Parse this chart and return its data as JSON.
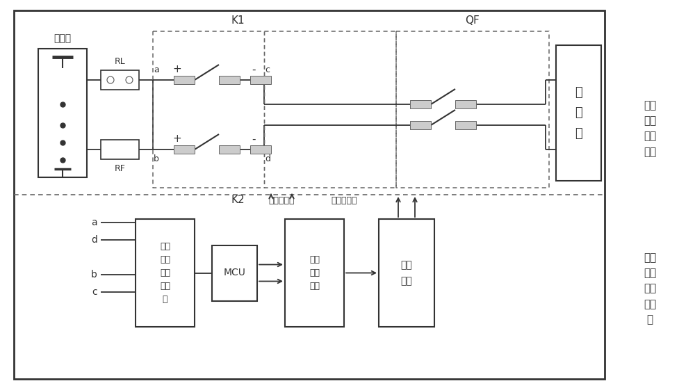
{
  "bg_color": "#ffffff",
  "fig_width": 10.0,
  "fig_height": 5.58,
  "lc": "#333333",
  "dc": "#666666",
  "pad_fc": "#cccccc",
  "labels": {
    "battery": "电池组",
    "rl": "RL",
    "rf": "RF",
    "k1": "K1",
    "k2": "K2",
    "qf": "QF",
    "inverter": "逆\n变\n器",
    "relay_ctrl": "控制继电器",
    "top_right": "电池\n充放\n电主\n回路",
    "bot_right": "继电\n器检\n测控\n制组\n件",
    "cross": "交叉\n式隔\n离采\n集电\n路",
    "mcu": "MCU",
    "data_proc": "数据\n处理\n单元",
    "ctrl_unit": "控制\n单元",
    "pt_a": "a",
    "pt_b": "b",
    "pt_c": "c",
    "pt_d": "d",
    "plus": "+",
    "minus": "-"
  }
}
